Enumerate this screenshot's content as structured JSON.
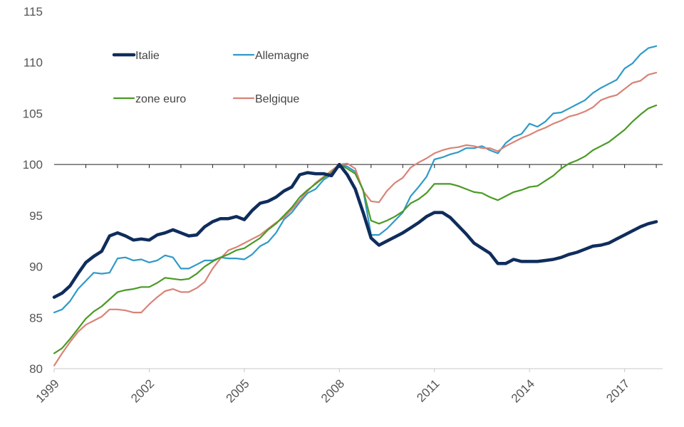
{
  "chart_data": {
    "type": "line",
    "title": "",
    "xlabel": "",
    "ylabel": "",
    "x_tick_labels": [
      "1999",
      "2002",
      "2005",
      "2008",
      "2011",
      "2014",
      "2017"
    ],
    "y_tick_labels": [
      "80",
      "85",
      "90",
      "95",
      "100",
      "105",
      "110",
      "115"
    ],
    "xlim": [
      1999,
      2018.2
    ],
    "ylim": [
      80,
      115
    ],
    "grid": "horizontal at 100 only",
    "legend_position": "upper-left, inside plot",
    "x": [
      1999.0,
      1999.25,
      1999.5,
      1999.75,
      2000.0,
      2000.25,
      2000.5,
      2000.75,
      2001.0,
      2001.25,
      2001.5,
      2001.75,
      2002.0,
      2002.25,
      2002.5,
      2002.75,
      2003.0,
      2003.25,
      2003.5,
      2003.75,
      2004.0,
      2004.25,
      2004.5,
      2004.75,
      2005.0,
      2005.25,
      2005.5,
      2005.75,
      2006.0,
      2006.25,
      2006.5,
      2006.75,
      2007.0,
      2007.25,
      2007.5,
      2007.75,
      2008.0,
      2008.25,
      2008.5,
      2008.75,
      2009.0,
      2009.25,
      2009.5,
      2009.75,
      2010.0,
      2010.25,
      2010.5,
      2010.75,
      2011.0,
      2011.25,
      2011.5,
      2011.75,
      2012.0,
      2012.25,
      2012.5,
      2012.75,
      2013.0,
      2013.25,
      2013.5,
      2013.75,
      2014.0,
      2014.25,
      2014.5,
      2014.75,
      2015.0,
      2015.25,
      2015.5,
      2015.75,
      2016.0,
      2016.25,
      2016.5,
      2016.75,
      2017.0,
      2017.25,
      2017.5,
      2017.75,
      2018.0
    ],
    "series": [
      {
        "name": "Italie",
        "color": "#0f2d5c",
        "width": 4.5,
        "values": [
          87.0,
          87.4,
          88.1,
          89.3,
          90.4,
          91.0,
          91.5,
          93.0,
          93.3,
          93.0,
          92.6,
          92.7,
          92.6,
          93.1,
          93.3,
          93.6,
          93.3,
          93.0,
          93.1,
          93.9,
          94.4,
          94.7,
          94.7,
          94.9,
          94.6,
          95.5,
          96.2,
          96.4,
          96.8,
          97.4,
          97.8,
          99.0,
          99.2,
          99.1,
          99.1,
          98.9,
          100.0,
          99.0,
          97.6,
          95.3,
          92.8,
          92.1,
          92.5,
          92.9,
          93.3,
          93.8,
          94.3,
          94.9,
          95.3,
          95.3,
          94.8,
          94.0,
          93.2,
          92.3,
          91.8,
          91.3,
          90.3,
          90.3,
          90.7,
          90.5,
          90.5,
          90.5,
          90.6,
          90.7,
          90.9,
          91.2,
          91.4,
          91.7,
          92.0,
          92.1,
          92.3,
          92.7,
          93.1,
          93.5,
          93.9,
          94.2,
          94.4
        ]
      },
      {
        "name": "Allemagne",
        "color": "#2f9ac8",
        "width": 2.2,
        "values": [
          85.5,
          85.8,
          86.6,
          87.8,
          88.6,
          89.4,
          89.3,
          89.4,
          90.8,
          90.9,
          90.6,
          90.7,
          90.4,
          90.6,
          91.1,
          90.9,
          89.8,
          89.8,
          90.2,
          90.6,
          90.6,
          90.9,
          90.8,
          90.8,
          90.7,
          91.2,
          92.0,
          92.4,
          93.3,
          94.6,
          95.3,
          96.3,
          97.2,
          97.6,
          98.5,
          99.0,
          100.0,
          99.8,
          99.3,
          97.5,
          93.1,
          93.1,
          93.7,
          94.5,
          95.3,
          96.9,
          97.8,
          98.8,
          100.5,
          100.7,
          101.0,
          101.2,
          101.6,
          101.6,
          101.8,
          101.4,
          101.1,
          102.1,
          102.7,
          103.0,
          104.0,
          103.7,
          104.2,
          105.0,
          105.1,
          105.5,
          105.9,
          106.3,
          107.0,
          107.5,
          107.9,
          108.3,
          109.4,
          109.9,
          110.8,
          111.4,
          111.6
        ]
      },
      {
        "name": "zone euro",
        "color": "#4a9a24",
        "width": 2.2,
        "values": [
          81.5,
          82.0,
          82.9,
          83.9,
          84.9,
          85.6,
          86.1,
          86.8,
          87.5,
          87.7,
          87.8,
          88.0,
          88.0,
          88.4,
          88.9,
          88.8,
          88.7,
          88.8,
          89.3,
          90.0,
          90.5,
          90.9,
          91.2,
          91.6,
          91.8,
          92.3,
          92.8,
          93.6,
          94.2,
          95.0,
          95.8,
          96.8,
          97.5,
          98.1,
          98.7,
          99.2,
          100.0,
          99.6,
          99.1,
          97.5,
          94.5,
          94.2,
          94.5,
          94.9,
          95.4,
          96.2,
          96.6,
          97.2,
          98.1,
          98.1,
          98.1,
          97.9,
          97.6,
          97.3,
          97.2,
          96.8,
          96.5,
          96.9,
          97.3,
          97.5,
          97.8,
          97.9,
          98.4,
          98.9,
          99.6,
          100.1,
          100.4,
          100.8,
          101.4,
          101.8,
          102.2,
          102.8,
          103.4,
          104.2,
          104.9,
          105.5,
          105.8
        ]
      },
      {
        "name": "Belgique",
        "color": "#d98377",
        "width": 2.2,
        "values": [
          80.3,
          81.5,
          82.6,
          83.6,
          84.3,
          84.7,
          85.1,
          85.8,
          85.8,
          85.7,
          85.5,
          85.5,
          86.3,
          87.0,
          87.6,
          87.8,
          87.5,
          87.5,
          87.9,
          88.5,
          89.8,
          90.8,
          91.6,
          91.9,
          92.3,
          92.7,
          93.1,
          93.7,
          94.3,
          94.8,
          95.6,
          96.5,
          97.4,
          98.2,
          98.8,
          99.4,
          100.0,
          100.1,
          99.6,
          97.4,
          96.4,
          96.3,
          97.4,
          98.2,
          98.7,
          99.7,
          100.2,
          100.6,
          101.1,
          101.4,
          101.6,
          101.7,
          101.9,
          101.8,
          101.6,
          101.6,
          101.3,
          101.8,
          102.2,
          102.6,
          102.9,
          103.3,
          103.6,
          104.0,
          104.3,
          104.7,
          104.9,
          105.2,
          105.6,
          106.3,
          106.6,
          106.8,
          107.4,
          108.0,
          108.2,
          108.8,
          109.0
        ]
      }
    ]
  }
}
